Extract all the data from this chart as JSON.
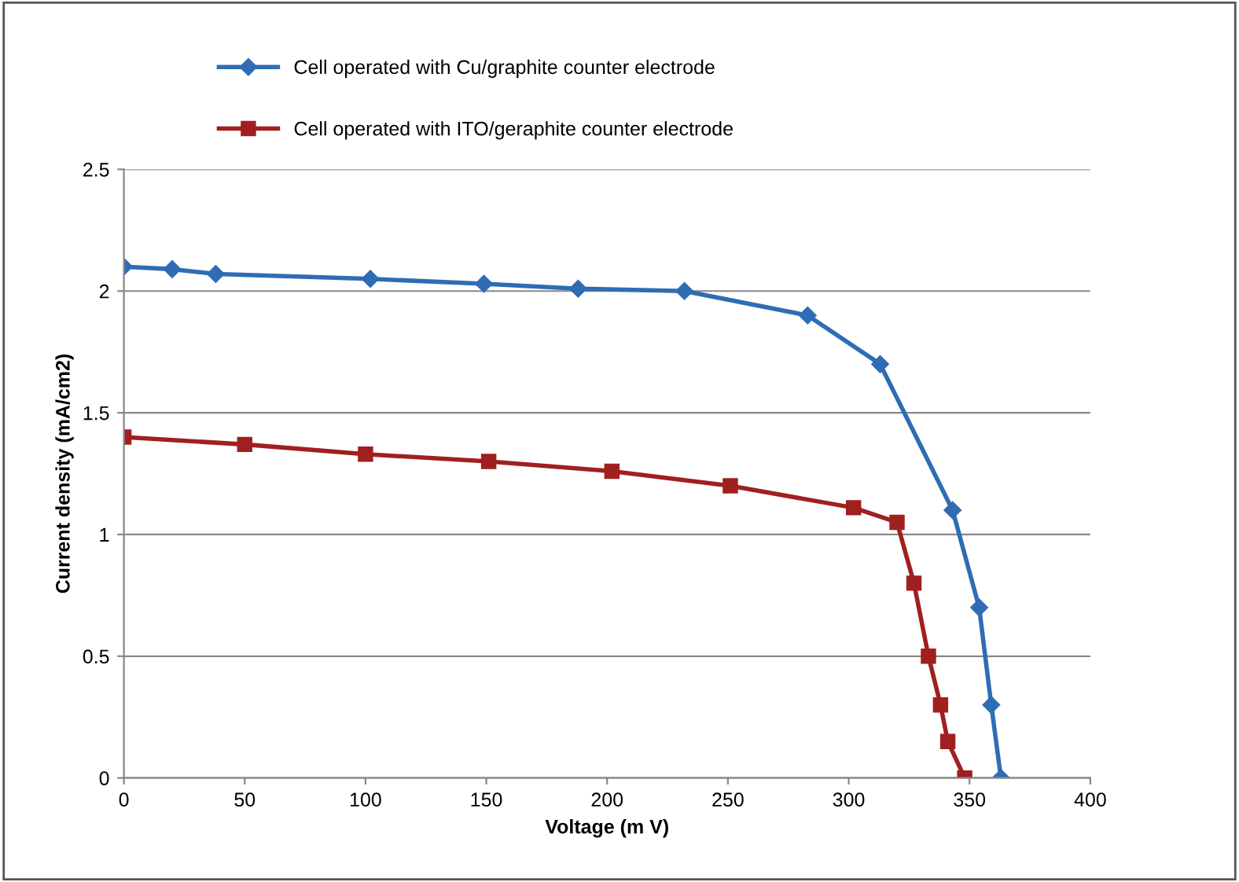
{
  "chart_data": {
    "type": "line",
    "xlabel": "Voltage (m V)",
    "ylabel": "Current density (mA/cm2)",
    "xlim": [
      0,
      400
    ],
    "xticks": [
      0,
      50,
      100,
      150,
      200,
      250,
      300,
      350,
      400
    ],
    "ylim": [
      0,
      2.5
    ],
    "yticks": [
      0,
      0.5,
      1,
      1.5,
      2,
      2.5
    ],
    "grid": "y",
    "legend": "top left",
    "series": [
      {
        "name": "Cell operated with Cu/graphite counter electrode",
        "color": "#2e6db4",
        "marker": "diamond",
        "x": [
          0,
          20,
          38,
          102,
          149,
          188,
          232,
          283,
          313,
          343,
          354,
          359,
          363
        ],
        "values": [
          2.1,
          2.09,
          2.07,
          2.05,
          2.03,
          2.01,
          2.0,
          1.9,
          1.7,
          1.1,
          0.7,
          0.3,
          0
        ]
      },
      {
        "name": "Cell operated with ITO/geraphite counter electrode",
        "color": "#a0201f",
        "marker": "square",
        "x": [
          0,
          50,
          100,
          151,
          202,
          251,
          302,
          320,
          327,
          333,
          338,
          341,
          348
        ],
        "values": [
          1.4,
          1.37,
          1.33,
          1.3,
          1.26,
          1.2,
          1.11,
          1.05,
          0.8,
          0.5,
          0.3,
          0.15,
          0
        ]
      }
    ]
  }
}
